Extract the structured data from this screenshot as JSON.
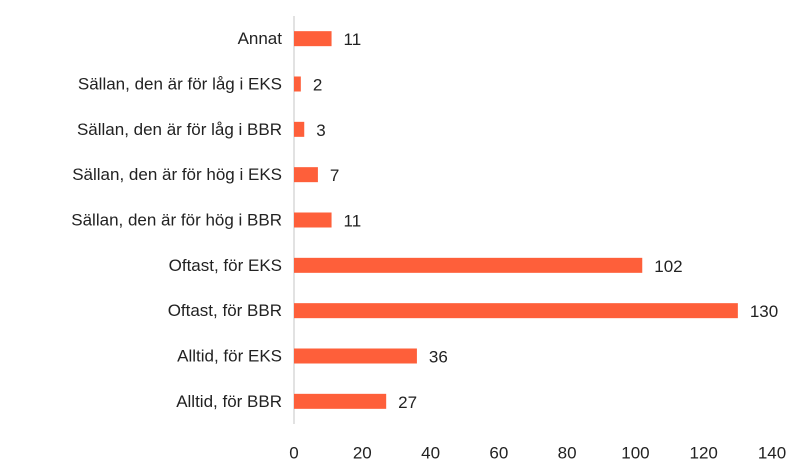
{
  "chart_data": {
    "type": "bar",
    "orientation": "horizontal",
    "categories": [
      "Annat",
      "Sällan, den är för låg i EKS",
      "Sällan, den är för låg i BBR",
      "Sällan, den är för hög i EKS",
      "Sällan, den är för hög i BBR",
      "Oftast, för EKS",
      "Oftast, för BBR",
      "Alltid, för EKS",
      "Alltid, för BBR"
    ],
    "values": [
      11,
      2,
      3,
      7,
      11,
      102,
      130,
      36,
      27
    ],
    "color": "#fe5f3a",
    "xlim": [
      0,
      140
    ],
    "xticks": [
      0,
      20,
      40,
      60,
      80,
      100,
      120,
      140
    ],
    "grid": false
  }
}
